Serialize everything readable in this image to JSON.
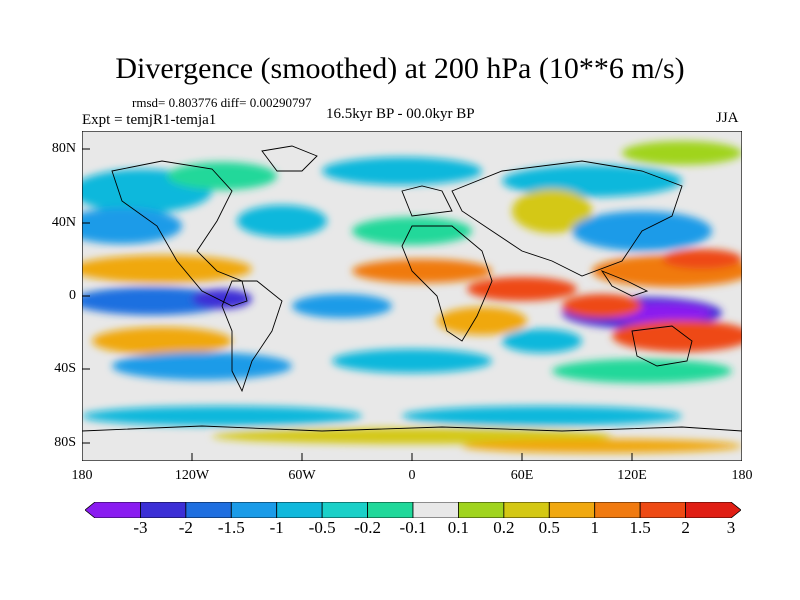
{
  "title": "Divergence (smoothed) at 200 hPa (10**6 m/s)",
  "stats": "rmsd= 0.803776 diff= 0.00290797",
  "experiment": "Expt = temjR1-temja1",
  "period": "16.5kyr BP - 00.0kyr BP",
  "season": "JJA",
  "y_ticks": [
    "80N",
    "40N",
    "0",
    "40S",
    "80S"
  ],
  "x_ticks": [
    "180",
    "120W",
    "60W",
    "0",
    "60E",
    "120E",
    "180"
  ],
  "colorbar": {
    "labels": [
      "-3",
      "-2",
      "-1.5",
      "-1",
      "-0.5",
      "-0.2",
      "-0.1",
      "0.1",
      "0.2",
      "0.5",
      "1",
      "1.5",
      "2",
      "3"
    ],
    "colors": [
      "#8a1cf0",
      "#3c2fd6",
      "#1f6fe0",
      "#1a9be8",
      "#10b8dc",
      "#1ad0c8",
      "#20d89a",
      "#e8e8e8",
      "#a0d41e",
      "#d4c814",
      "#f0a810",
      "#f07a10",
      "#ee4a14",
      "#e01e14"
    ]
  },
  "map_colors": {
    "neutral": "#e8e8e8",
    "coast": "#000000"
  }
}
